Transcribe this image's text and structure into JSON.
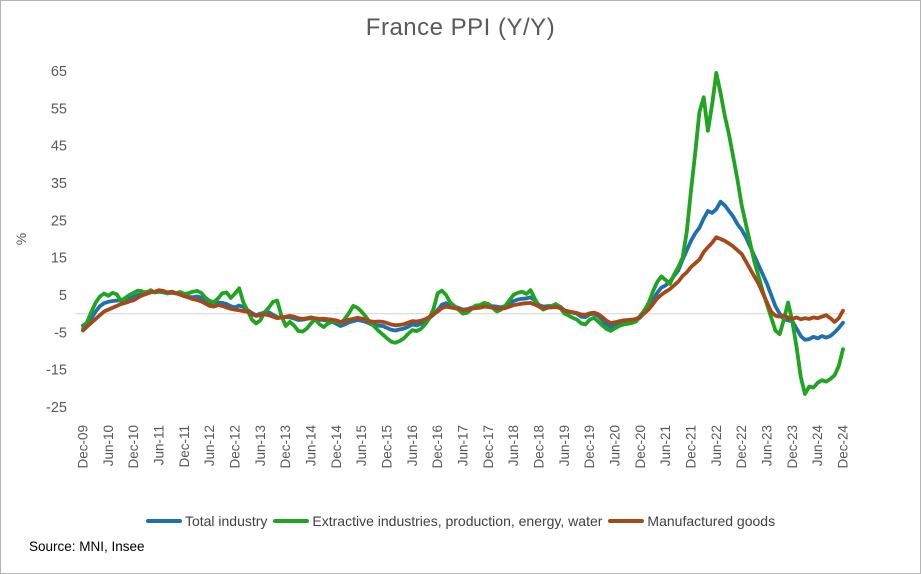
{
  "source_note": "Source: MNI, Insee",
  "chart_data": {
    "type": "line",
    "title": "France PPI (Y/Y)",
    "xlabel": "",
    "ylabel": "%",
    "ylim": [
      -25,
      65
    ],
    "yticks": [
      65,
      55,
      45,
      35,
      25,
      15,
      5,
      -5,
      -15,
      -25
    ],
    "grid": "zero-line-only",
    "zero_line_color": "#d9d9d9",
    "axis_text_color": "#595959",
    "legend_position": "bottom",
    "x_frequency": "monthly",
    "x_range": [
      "Dec-09",
      "Dec-24"
    ],
    "x_tick_labels": [
      "Dec-09",
      "Jun-10",
      "Dec-10",
      "Jun-11",
      "Dec-11",
      "Jun-12",
      "Dec-12",
      "Jun-13",
      "Dec-13",
      "Jun-14",
      "Dec-14",
      "Jun-15",
      "Dec-15",
      "Jun-16",
      "Dec-16",
      "Jun-17",
      "Dec-17",
      "Jun-18",
      "Dec-18",
      "Jun-19",
      "Dec-19",
      "Jun-20",
      "Dec-20",
      "Jun-21",
      "Dec-21",
      "Jun-22",
      "Dec-22",
      "Jun-23",
      "Dec-23",
      "Jun-24",
      "Dec-24"
    ],
    "series": [
      {
        "name": "Total industry",
        "color": "#1f71ad",
        "values": [
          -3.2,
          -2.4,
          -1.2,
          0.6,
          2.0,
          2.8,
          3.2,
          3.4,
          3.5,
          3.7,
          3.9,
          4.2,
          4.5,
          5.0,
          5.4,
          5.8,
          6.0,
          5.7,
          5.9,
          5.7,
          5.5,
          5.6,
          5.4,
          5.3,
          4.9,
          4.5,
          4.4,
          4.6,
          4.3,
          3.5,
          2.7,
          2.6,
          3.0,
          2.9,
          2.6,
          2.0,
          1.7,
          2.2,
          1.8,
          1.0,
          0.2,
          -0.4,
          0.0,
          0.3,
          0.4,
          -0.3,
          -0.9,
          -1.1,
          -0.9,
          -1.0,
          -1.3,
          -1.7,
          -1.6,
          -1.4,
          -1.2,
          -1.4,
          -1.6,
          -1.7,
          -1.9,
          -2.1,
          -2.7,
          -3.3,
          -2.9,
          -2.3,
          -2.0,
          -1.7,
          -1.9,
          -2.2,
          -2.7,
          -3.1,
          -3.2,
          -3.3,
          -3.8,
          -4.3,
          -4.5,
          -4.2,
          -4.0,
          -3.5,
          -2.9,
          -3.1,
          -2.7,
          -2.1,
          -1.2,
          -0.3,
          1.0,
          2.4,
          2.8,
          2.3,
          1.9,
          1.5,
          1.1,
          1.2,
          1.6,
          1.9,
          2.0,
          2.3,
          2.2,
          2.0,
          1.9,
          1.7,
          2.1,
          2.9,
          3.4,
          3.8,
          4.0,
          4.1,
          4.4,
          3.6,
          2.3,
          1.9,
          2.0,
          2.1,
          2.4,
          1.9,
          0.9,
          0.6,
          0.3,
          0.0,
          -0.8,
          -0.9,
          -0.2,
          0.0,
          -0.6,
          -1.7,
          -2.9,
          -3.5,
          -3.1,
          -2.7,
          -2.5,
          -2.3,
          -2.1,
          -1.8,
          -1.0,
          0.5,
          1.6,
          3.6,
          5.6,
          7.0,
          7.6,
          8.6,
          10.1,
          11.6,
          14.5,
          17.0,
          19.5,
          21.5,
          23.0,
          25.5,
          27.5,
          27.0,
          28.0,
          30.0,
          29.0,
          27.5,
          26.0,
          24.0,
          22.5,
          20.5,
          18.0,
          15.5,
          13.0,
          10.5,
          8.0,
          5.0,
          2.0,
          0.0,
          -1.5,
          -1.8,
          -2.0,
          -4.0,
          -6.0,
          -7.0,
          -6.8,
          -6.2,
          -6.6,
          -6.0,
          -6.4,
          -6.0,
          -5.0,
          -3.8,
          -2.4
        ]
      },
      {
        "name": "Extractive industries, production, energy, water",
        "color": "#21a421",
        "values": [
          -4.0,
          -2.2,
          0.5,
          3.0,
          4.6,
          5.4,
          4.8,
          5.6,
          5.2,
          3.4,
          4.2,
          5.0,
          5.6,
          6.2,
          6.0,
          5.6,
          6.3,
          5.7,
          6.2,
          5.8,
          5.4,
          5.9,
          5.5,
          5.8,
          5.3,
          5.5,
          5.9,
          6.1,
          5.6,
          4.3,
          3.4,
          3.1,
          4.1,
          5.5,
          5.7,
          4.2,
          5.4,
          6.8,
          3.0,
          0.8,
          -1.6,
          -2.6,
          -1.8,
          0.4,
          1.6,
          3.2,
          3.5,
          -0.5,
          -3.3,
          -2.2,
          -3.2,
          -4.6,
          -4.8,
          -4.0,
          -2.6,
          -1.4,
          -2.8,
          -3.6,
          -2.6,
          -2.2,
          -2.0,
          -2.6,
          -1.4,
          0.2,
          2.1,
          1.6,
          0.5,
          -0.8,
          -2.4,
          -3.4,
          -4.6,
          -5.6,
          -6.6,
          -7.5,
          -7.8,
          -7.3,
          -6.6,
          -5.4,
          -4.4,
          -4.7,
          -4.1,
          -2.9,
          -1.3,
          1.2,
          5.5,
          6.2,
          5.0,
          3.0,
          2.0,
          1.0,
          0.0,
          0.3,
          1.2,
          2.2,
          2.3,
          2.9,
          2.6,
          1.6,
          0.6,
          1.1,
          2.1,
          3.6,
          5.1,
          5.6,
          5.9,
          5.3,
          6.3,
          4.0,
          2.0,
          1.1,
          1.6,
          2.1,
          2.6,
          1.6,
          0.1,
          -0.5,
          -1.1,
          -1.6,
          -2.6,
          -2.9,
          -1.6,
          -1.1,
          -2.1,
          -3.1,
          -4.1,
          -4.6,
          -3.9,
          -3.3,
          -2.9,
          -2.7,
          -2.5,
          -2.1,
          -0.5,
          1.0,
          3.0,
          6.0,
          8.5,
          10.0,
          9.0,
          8.0,
          10.5,
          12.5,
          15.0,
          22.0,
          33.0,
          43.0,
          54.0,
          58.0,
          49.0,
          56.0,
          64.5,
          59.0,
          53.0,
          48.0,
          42.0,
          36.0,
          29.0,
          24.0,
          19.0,
          14.0,
          10.0,
          6.0,
          2.5,
          -1.0,
          -4.5,
          -5.5,
          -1.5,
          3.0,
          -2.0,
          -9.0,
          -17.0,
          -21.5,
          -19.5,
          -19.8,
          -18.5,
          -17.8,
          -18.2,
          -17.5,
          -16.5,
          -14.0,
          -9.5
        ]
      },
      {
        "name": "Manufactured goods",
        "color": "#a6491a",
        "values": [
          -4.5,
          -3.4,
          -2.4,
          -1.4,
          -0.4,
          0.6,
          1.1,
          1.6,
          2.1,
          2.6,
          2.9,
          3.3,
          3.6,
          4.3,
          4.9,
          5.3,
          5.7,
          5.9,
          6.3,
          6.1,
          5.7,
          5.9,
          5.5,
          5.1,
          4.7,
          4.3,
          3.9,
          3.7,
          3.3,
          2.7,
          2.1,
          1.9,
          2.3,
          2.1,
          1.7,
          1.3,
          1.1,
          0.9,
          0.7,
          0.5,
          -0.1,
          -0.6,
          -0.4,
          -0.2,
          -0.4,
          -0.8,
          -1.2,
          -1.0,
          -0.8,
          -0.6,
          -0.8,
          -1.2,
          -1.4,
          -1.2,
          -1.0,
          -1.2,
          -1.4,
          -1.3,
          -1.5,
          -1.6,
          -1.8,
          -2.2,
          -2.0,
          -1.6,
          -1.4,
          -1.1,
          -1.3,
          -1.6,
          -2.0,
          -2.2,
          -2.1,
          -2.2,
          -2.5,
          -2.9,
          -3.1,
          -3.0,
          -2.8,
          -2.4,
          -2.0,
          -2.1,
          -1.9,
          -1.5,
          -0.9,
          -0.1,
          0.6,
          1.5,
          1.9,
          1.7,
          1.5,
          1.2,
          0.9,
          1.0,
          1.3,
          1.5,
          1.6,
          1.9,
          1.8,
          1.6,
          1.4,
          1.3,
          1.5,
          1.9,
          2.3,
          2.5,
          2.7,
          2.8,
          2.9,
          2.5,
          1.9,
          1.5,
          1.6,
          1.7,
          1.8,
          1.5,
          0.9,
          0.6,
          0.4,
          0.2,
          -0.2,
          -0.3,
          0.1,
          0.3,
          -0.1,
          -0.9,
          -1.9,
          -2.5,
          -2.3,
          -2.0,
          -1.8,
          -1.7,
          -1.6,
          -1.4,
          -0.8,
          0.2,
          1.2,
          2.6,
          4.1,
          5.1,
          5.9,
          6.6,
          7.6,
          8.6,
          10.1,
          11.1,
          12.5,
          13.5,
          14.5,
          16.5,
          17.8,
          19.0,
          20.5,
          20.0,
          19.5,
          18.8,
          18.0,
          17.0,
          16.0,
          14.0,
          12.0,
          10.0,
          8.0,
          5.5,
          3.0,
          0.5,
          -0.5,
          -0.8,
          -0.5,
          -1.0,
          -1.4,
          -1.0,
          -1.5,
          -1.2,
          -1.4,
          -1.0,
          -1.2,
          -0.8,
          -0.4,
          -1.2,
          -2.2,
          -1.2,
          0.8
        ]
      }
    ]
  }
}
